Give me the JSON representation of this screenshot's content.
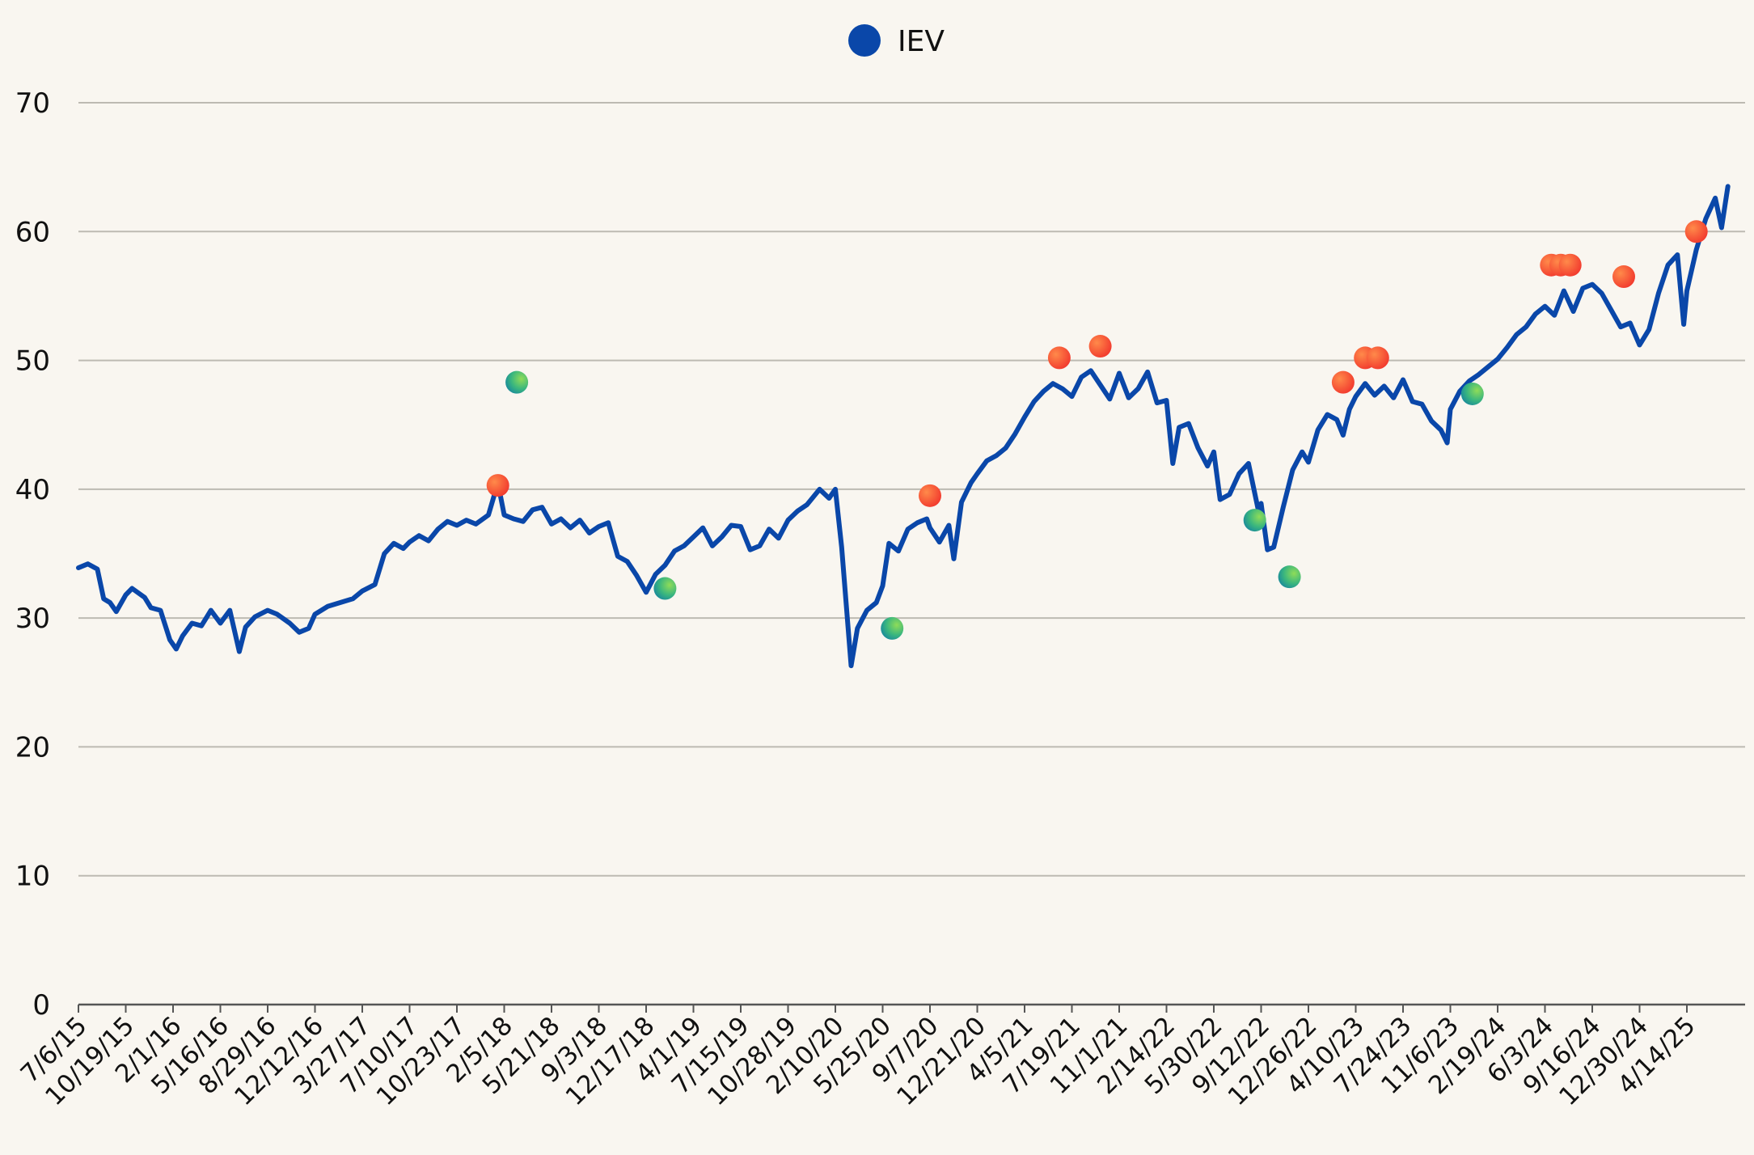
{
  "chart_data": {
    "type": "line",
    "title": "",
    "xlabel": "",
    "ylabel": "",
    "ylim": [
      0,
      70
    ],
    "y_ticks": [
      0,
      10,
      20,
      30,
      40,
      50,
      60,
      70
    ],
    "grid": "horizontal",
    "legend_placement": "top-center",
    "x_tick_labels": [
      "7/6/15",
      "10/19/15",
      "2/1/16",
      "5/16/16",
      "8/29/16",
      "12/12/16",
      "3/27/17",
      "7/10/17",
      "10/23/17",
      "2/5/18",
      "5/21/18",
      "9/3/18",
      "12/17/18",
      "4/1/19",
      "7/15/19",
      "10/28/19",
      "2/10/20",
      "5/25/20",
      "9/7/20",
      "12/21/20",
      "4/5/21",
      "7/19/21",
      "11/1/21",
      "2/14/22",
      "5/30/22",
      "9/12/22",
      "12/26/22",
      "4/10/23",
      "7/24/23",
      "11/6/23",
      "2/19/24",
      "6/3/24",
      "9/16/24",
      "12/30/24",
      "4/14/25"
    ],
    "series": [
      {
        "name": "IEV",
        "color": "#0a47a9",
        "points": [
          [
            "7/6/15",
            33.9
          ],
          [
            "7/27/15",
            34.2
          ],
          [
            "8/17/15",
            33.8
          ],
          [
            "8/31/15",
            31.5
          ],
          [
            "9/14/15",
            31.2
          ],
          [
            "9/28/15",
            30.5
          ],
          [
            "10/19/15",
            31.8
          ],
          [
            "11/2/15",
            32.3
          ],
          [
            "11/30/15",
            31.6
          ],
          [
            "12/14/15",
            30.8
          ],
          [
            "1/4/16",
            30.6
          ],
          [
            "1/25/16",
            28.3
          ],
          [
            "2/8/16",
            27.6
          ],
          [
            "2/22/16",
            28.6
          ],
          [
            "3/14/16",
            29.6
          ],
          [
            "4/4/16",
            29.4
          ],
          [
            "4/25/16",
            30.6
          ],
          [
            "5/16/16",
            29.6
          ],
          [
            "6/6/16",
            30.6
          ],
          [
            "6/27/16",
            27.4
          ],
          [
            "7/11/16",
            29.3
          ],
          [
            "8/1/16",
            30.1
          ],
          [
            "8/29/16",
            30.6
          ],
          [
            "9/19/16",
            30.3
          ],
          [
            "10/17/16",
            29.6
          ],
          [
            "11/7/16",
            28.9
          ],
          [
            "11/28/16",
            29.2
          ],
          [
            "12/12/16",
            30.3
          ],
          [
            "1/9/17",
            30.9
          ],
          [
            "2/6/17",
            31.2
          ],
          [
            "3/6/17",
            31.5
          ],
          [
            "3/27/17",
            32.1
          ],
          [
            "4/24/17",
            32.6
          ],
          [
            "5/15/17",
            35.0
          ],
          [
            "6/5/17",
            35.8
          ],
          [
            "6/26/17",
            35.4
          ],
          [
            "7/10/17",
            35.9
          ],
          [
            "7/31/17",
            36.4
          ],
          [
            "8/21/17",
            36.0
          ],
          [
            "9/11/17",
            36.9
          ],
          [
            "10/2/17",
            37.5
          ],
          [
            "10/23/17",
            37.2
          ],
          [
            "11/13/17",
            37.6
          ],
          [
            "12/4/17",
            37.3
          ],
          [
            "1/1/18",
            38.0
          ],
          [
            "1/22/18",
            40.5
          ],
          [
            "2/5/18",
            38.0
          ],
          [
            "2/26/18",
            37.7
          ],
          [
            "3/19/18",
            37.5
          ],
          [
            "4/9/18",
            38.4
          ],
          [
            "4/30/18",
            38.6
          ],
          [
            "5/21/18",
            37.3
          ],
          [
            "6/11/18",
            37.7
          ],
          [
            "7/2/18",
            37.0
          ],
          [
            "7/23/18",
            37.6
          ],
          [
            "8/13/18",
            36.6
          ],
          [
            "9/3/18",
            37.1
          ],
          [
            "9/24/18",
            37.4
          ],
          [
            "10/15/18",
            34.8
          ],
          [
            "11/5/18",
            34.4
          ],
          [
            "11/26/18",
            33.3
          ],
          [
            "12/17/18",
            32.0
          ],
          [
            "1/7/19",
            33.4
          ],
          [
            "1/28/19",
            34.1
          ],
          [
            "2/18/19",
            35.2
          ],
          [
            "3/11/19",
            35.6
          ],
          [
            "4/1/19",
            36.3
          ],
          [
            "4/22/19",
            37.0
          ],
          [
            "5/13/19",
            35.6
          ],
          [
            "6/3/19",
            36.3
          ],
          [
            "6/24/19",
            37.2
          ],
          [
            "7/15/19",
            37.1
          ],
          [
            "8/5/19",
            35.3
          ],
          [
            "8/26/19",
            35.6
          ],
          [
            "9/16/19",
            36.9
          ],
          [
            "10/7/19",
            36.2
          ],
          [
            "10/28/19",
            37.6
          ],
          [
            "11/18/19",
            38.3
          ],
          [
            "12/9/19",
            38.8
          ],
          [
            "1/6/20",
            40.0
          ],
          [
            "1/27/20",
            39.3
          ],
          [
            "2/10/20",
            40.0
          ],
          [
            "2/24/20",
            35.5
          ],
          [
            "3/16/20",
            26.3
          ],
          [
            "3/30/20",
            29.2
          ],
          [
            "4/20/20",
            30.6
          ],
          [
            "5/11/20",
            31.2
          ],
          [
            "5/25/20",
            32.5
          ],
          [
            "6/8/20",
            35.8
          ],
          [
            "6/29/20",
            35.2
          ],
          [
            "7/20/20",
            36.9
          ],
          [
            "8/10/20",
            37.4
          ],
          [
            "8/31/20",
            37.7
          ],
          [
            "9/7/20",
            37.0
          ],
          [
            "9/28/20",
            35.9
          ],
          [
            "10/19/20",
            37.2
          ],
          [
            "10/30/20",
            34.6
          ],
          [
            "11/16/20",
            39.0
          ],
          [
            "12/7/20",
            40.5
          ],
          [
            "12/21/20",
            41.2
          ],
          [
            "1/11/21",
            42.2
          ],
          [
            "2/1/21",
            42.6
          ],
          [
            "2/22/21",
            43.2
          ],
          [
            "3/15/21",
            44.3
          ],
          [
            "4/5/21",
            45.6
          ],
          [
            "4/26/21",
            46.8
          ],
          [
            "5/17/21",
            47.6
          ],
          [
            "6/7/21",
            48.2
          ],
          [
            "6/28/21",
            47.8
          ],
          [
            "7/19/21",
            47.2
          ],
          [
            "8/9/21",
            48.7
          ],
          [
            "8/30/21",
            49.2
          ],
          [
            "9/20/21",
            48.1
          ],
          [
            "10/11/21",
            47.0
          ],
          [
            "11/1/21",
            49.0
          ],
          [
            "11/22/21",
            47.1
          ],
          [
            "12/13/21",
            47.8
          ],
          [
            "1/3/22",
            49.1
          ],
          [
            "1/24/22",
            46.7
          ],
          [
            "2/14/22",
            46.9
          ],
          [
            "2/28/22",
            42.0
          ],
          [
            "3/14/22",
            44.8
          ],
          [
            "4/4/22",
            45.1
          ],
          [
            "4/25/22",
            43.2
          ],
          [
            "5/16/22",
            41.8
          ],
          [
            "5/30/22",
            42.9
          ],
          [
            "6/13/22",
            39.2
          ],
          [
            "7/4/22",
            39.6
          ],
          [
            "7/25/22",
            41.2
          ],
          [
            "8/15/22",
            42.0
          ],
          [
            "9/5/22",
            38.5
          ],
          [
            "9/12/22",
            38.9
          ],
          [
            "9/26/22",
            35.3
          ],
          [
            "10/10/22",
            35.5
          ],
          [
            "10/31/22",
            38.6
          ],
          [
            "11/21/22",
            41.5
          ],
          [
            "12/12/22",
            42.9
          ],
          [
            "12/26/22",
            42.1
          ],
          [
            "1/16/23",
            44.6
          ],
          [
            "2/6/23",
            45.8
          ],
          [
            "2/27/23",
            45.4
          ],
          [
            "3/13/23",
            44.2
          ],
          [
            "3/27/23",
            46.2
          ],
          [
            "4/10/23",
            47.2
          ],
          [
            "5/1/23",
            48.2
          ],
          [
            "5/22/23",
            47.3
          ],
          [
            "6/12/23",
            48.0
          ],
          [
            "7/3/23",
            47.1
          ],
          [
            "7/24/23",
            48.5
          ],
          [
            "8/14/23",
            46.8
          ],
          [
            "9/4/23",
            46.6
          ],
          [
            "9/25/23",
            45.3
          ],
          [
            "10/16/23",
            44.6
          ],
          [
            "10/30/23",
            43.6
          ],
          [
            "11/6/23",
            46.2
          ],
          [
            "11/27/23",
            47.6
          ],
          [
            "12/18/23",
            48.4
          ],
          [
            "1/8/24",
            48.9
          ],
          [
            "1/29/24",
            49.5
          ],
          [
            "2/19/24",
            50.1
          ],
          [
            "3/11/24",
            51.0
          ],
          [
            "4/1/24",
            52.0
          ],
          [
            "4/22/24",
            52.6
          ],
          [
            "5/13/24",
            53.6
          ],
          [
            "6/3/24",
            54.2
          ],
          [
            "6/24/24",
            53.5
          ],
          [
            "7/15/24",
            55.4
          ],
          [
            "8/5/24",
            53.8
          ],
          [
            "8/26/24",
            55.6
          ],
          [
            "9/16/24",
            55.9
          ],
          [
            "10/7/24",
            55.2
          ],
          [
            "10/28/24",
            53.9
          ],
          [
            "11/18/24",
            52.6
          ],
          [
            "12/9/24",
            52.9
          ],
          [
            "12/30/24",
            51.2
          ],
          [
            "1/20/25",
            52.4
          ],
          [
            "2/10/25",
            55.2
          ],
          [
            "3/3/25",
            57.4
          ],
          [
            "3/24/25",
            58.2
          ],
          [
            "4/7/25",
            52.8
          ],
          [
            "4/14/25",
            55.4
          ],
          [
            "5/5/25",
            58.6
          ],
          [
            "5/26/25",
            61.0
          ],
          [
            "6/16/25",
            62.6
          ],
          [
            "6/30/25",
            60.3
          ],
          [
            "7/14/25",
            63.5
          ]
        ]
      }
    ],
    "markers": [
      {
        "date": "1/22/18",
        "value": 40.3,
        "color": "red"
      },
      {
        "date": "3/5/18",
        "value": 48.3,
        "color": "green"
      },
      {
        "date": "1/28/19",
        "value": 32.3,
        "color": "green"
      },
      {
        "date": "6/15/20",
        "value": 29.2,
        "color": "green"
      },
      {
        "date": "9/7/20",
        "value": 39.5,
        "color": "red"
      },
      {
        "date": "6/21/21",
        "value": 50.2,
        "color": "red"
      },
      {
        "date": "9/20/21",
        "value": 51.1,
        "color": "red"
      },
      {
        "date": "8/29/22",
        "value": 37.6,
        "color": "green"
      },
      {
        "date": "11/14/22",
        "value": 33.2,
        "color": "green"
      },
      {
        "date": "3/13/23",
        "value": 48.3,
        "color": "red"
      },
      {
        "date": "5/1/23",
        "value": 50.2,
        "color": "red"
      },
      {
        "date": "5/29/23",
        "value": 50.2,
        "color": "red"
      },
      {
        "date": "12/25/23",
        "value": 47.4,
        "color": "green"
      },
      {
        "date": "6/17/24",
        "value": 57.4,
        "color": "red"
      },
      {
        "date": "7/8/24",
        "value": 57.4,
        "color": "red"
      },
      {
        "date": "7/29/24",
        "value": 57.4,
        "color": "red"
      },
      {
        "date": "11/25/24",
        "value": 56.5,
        "color": "red"
      },
      {
        "date": "5/5/25",
        "value": 60.0,
        "color": "red"
      }
    ]
  }
}
